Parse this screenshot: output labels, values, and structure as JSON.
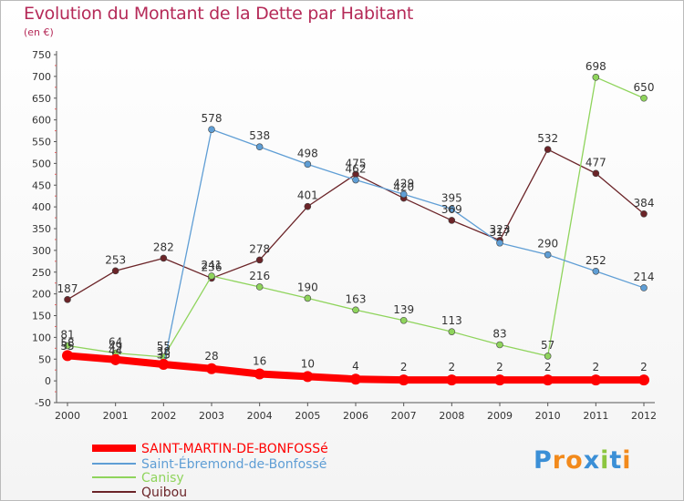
{
  "chart_data": {
    "type": "line",
    "title": "Evolution du Montant de la Dette par Habitant",
    "subtitle": "(en €)",
    "xlabel": "",
    "ylabel": "",
    "categories": [
      "2000",
      "2001",
      "2002",
      "2003",
      "2004",
      "2005",
      "2006",
      "2007",
      "2008",
      "2009",
      "2010",
      "2011",
      "2012"
    ],
    "ylim": [
      -50,
      750
    ],
    "yticks": [
      -50,
      0,
      50,
      100,
      150,
      200,
      250,
      300,
      350,
      400,
      450,
      500,
      550,
      600,
      650,
      700,
      750
    ],
    "grid": false,
    "legend_position": "bottom-left",
    "series": [
      {
        "name": "SAINT-MARTIN-DE-BONFOSSé",
        "color": "#ff0000",
        "values": [
          58,
          49,
          38,
          28,
          16,
          10,
          4,
          2,
          2,
          2,
          2,
          2,
          2
        ]
      },
      {
        "name": "Saint-Ébremond-de-Bonfossé",
        "color": "#5f9ed5",
        "values": [
          55,
          44,
          35,
          578,
          538,
          498,
          462,
          429,
          395,
          317,
          290,
          252,
          214
        ]
      },
      {
        "name": "Canisy",
        "color": "#8fd45c",
        "values": [
          81,
          64,
          55,
          241,
          216,
          190,
          163,
          139,
          113,
          83,
          57,
          698,
          650
        ]
      },
      {
        "name": "Quibou",
        "color": "#6b2428",
        "values": [
          187,
          253,
          282,
          236,
          278,
          401,
          475,
          420,
          369,
          323,
          532,
          477,
          384
        ]
      }
    ]
  },
  "logo": {
    "letters": [
      "P",
      "r",
      "o",
      "x",
      "i",
      "t",
      "i"
    ],
    "colors": [
      "#3b8fd6",
      "#f28a1c",
      "#f28a1c",
      "#3b8fd6",
      "#8cc63f",
      "#3b8fd6",
      "#f28a1c"
    ]
  }
}
